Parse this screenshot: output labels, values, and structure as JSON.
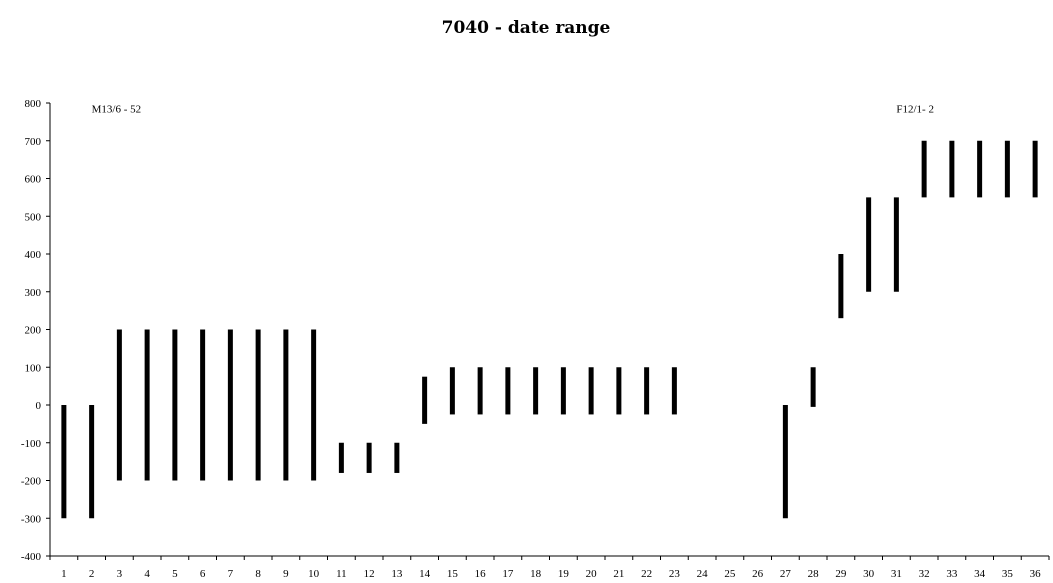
{
  "chart_data": {
    "type": "bar",
    "subtype": "floating-range",
    "title": "7040 - date range",
    "xlabel": "",
    "ylabel": "",
    "ylim": [
      -400,
      800
    ],
    "yticks": [
      -400,
      -300,
      -200,
      -100,
      0,
      100,
      200,
      300,
      400,
      500,
      600,
      700,
      800
    ],
    "categories": [
      "1",
      "2",
      "3",
      "4",
      "5",
      "6",
      "7",
      "8",
      "9",
      "10",
      "11",
      "12",
      "13",
      "14",
      "15",
      "16",
      "17",
      "18",
      "19",
      "20",
      "21",
      "22",
      "23",
      "24",
      "25",
      "26",
      "27",
      "28",
      "29",
      "30",
      "31",
      "32",
      "33",
      "34",
      "35",
      "36"
    ],
    "ranges": [
      [
        -300,
        0
      ],
      [
        -300,
        0
      ],
      [
        -200,
        200
      ],
      [
        -200,
        200
      ],
      [
        -200,
        200
      ],
      [
        -200,
        200
      ],
      [
        -200,
        200
      ],
      [
        -200,
        200
      ],
      [
        -200,
        200
      ],
      [
        -200,
        200
      ],
      [
        -180,
        -100
      ],
      [
        -180,
        -100
      ],
      [
        -180,
        -100
      ],
      [
        -50,
        75
      ],
      [
        -25,
        100
      ],
      [
        -25,
        100
      ],
      [
        -25,
        100
      ],
      [
        -25,
        100
      ],
      [
        -25,
        100
      ],
      [
        -25,
        100
      ],
      [
        -25,
        100
      ],
      [
        -25,
        100
      ],
      [
        -25,
        100
      ],
      null,
      null,
      null,
      [
        -300,
        0
      ],
      [
        -5,
        100
      ],
      [
        230,
        400
      ],
      [
        300,
        550
      ],
      [
        300,
        550
      ],
      [
        550,
        700
      ],
      [
        550,
        700
      ],
      [
        550,
        700
      ],
      [
        550,
        700
      ],
      [
        550,
        700
      ]
    ],
    "color": "#000000",
    "grid": false,
    "annotations": [
      {
        "text": "M13/6 - 52",
        "at_category": "2",
        "at_value": 775
      },
      {
        "text": "F12/1- 2",
        "at_category": "31",
        "at_value": 775
      }
    ]
  }
}
